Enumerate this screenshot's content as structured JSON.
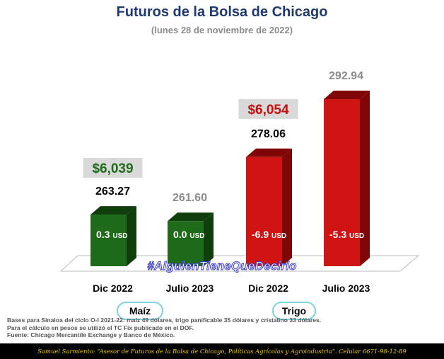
{
  "title": "Futuros de la Bolsa de Chicago",
  "subtitle": "(lunes 28 de noviembre de 2022)",
  "hashtag": "#AlguienTieneQueDecirlo",
  "chart_data": {
    "type": "bar",
    "categories": [
      "Dic 2022",
      "Julio 2023",
      "Dic 2022",
      "Julio 2023"
    ],
    "values": [
      263.27,
      261.6,
      278.06,
      292.94
    ],
    "value_labels": [
      "263.27",
      "261.60",
      "278.06",
      "292.94"
    ],
    "bar_labels": [
      "0.3",
      "0.0",
      "-6.9",
      "-5.3"
    ],
    "bar_unit": "USD",
    "bar_colors": [
      "#1f6b1a",
      "#1f6b1a",
      "#d01414",
      "#d01414"
    ],
    "side_colors": [
      "#0f3d0c",
      "#0f3d0c",
      "#7e0606",
      "#7e0606"
    ],
    "value_label_colors": [
      "#000000",
      "#8c8c8c",
      "#000000",
      "#8c8c8c"
    ],
    "ylim": [
      250,
      300
    ],
    "groups": [
      {
        "name": "Maíz",
        "price": "$6,039",
        "price_color": "#1f6b1a"
      },
      {
        "name": "Trigo",
        "price": "$6,054",
        "price_color": "#c01010"
      }
    ]
  },
  "notes": [
    "Bases para Sinaloa del ciclo O-I 2021-22: maíz 49 dólares, trigo panificable 35 dólares y cristalino 33 dólares.",
    "Para el cálculo en pesos se utilizó el TC Fix publicado en el DOF.",
    "Fuente: Chicago Mercantile Exchange y Banco de México."
  ],
  "footer": "Samuel Sarmiento: “Asesor de Futuros de la Bolsa de Chicago, Políticas Agrícolas y Agroindustria”. Celular 6671-98-12-89"
}
